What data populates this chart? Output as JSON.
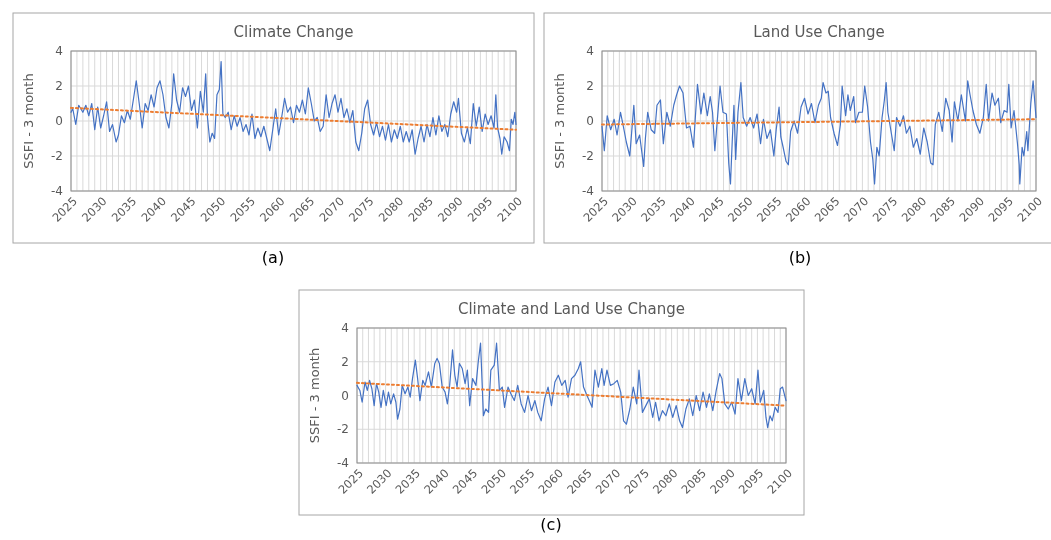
{
  "chart_data": [
    {
      "type": "line",
      "title": "Climate Change",
      "ylabel": "SSFI - 3 month",
      "xlim": [
        2025,
        2100
      ],
      "ylim": [
        -4,
        4
      ],
      "yticks": [
        -4,
        -2,
        0,
        2,
        4
      ],
      "grid": true,
      "annotations": [
        "(a)"
      ],
      "xticks": [
        2025,
        {
          "value": 2026,
          "label": null
        },
        {
          "value": 2027,
          "label": null
        },
        {
          "value": 2028,
          "label": null
        },
        {
          "value": 2029,
          "label": null
        },
        2030,
        {
          "value": 2031,
          "label": null
        },
        {
          "value": 2032,
          "label": null
        },
        {
          "value": 2033,
          "label": null
        },
        {
          "value": 2034,
          "label": null
        },
        2035,
        {
          "value": 2036,
          "label": null
        },
        {
          "value": 2037,
          "label": null
        },
        {
          "value": 2038,
          "label": null
        },
        {
          "value": 2039,
          "label": null
        },
        2040,
        {
          "value": 2041,
          "label": null
        },
        {
          "value": 2042,
          "label": null
        },
        {
          "value": 2043,
          "label": null
        },
        {
          "value": 2044,
          "label": null
        },
        2045,
        {
          "value": 2046,
          "label": null
        },
        {
          "value": 2047,
          "label": null
        },
        {
          "value": 2048,
          "label": null
        },
        {
          "value": 2049,
          "label": null
        },
        2050,
        {
          "value": 2051,
          "label": null
        },
        {
          "value": 2052,
          "label": null
        },
        {
          "value": 2053,
          "label": null
        },
        {
          "value": 2054,
          "label": null
        },
        2055,
        {
          "value": 2056,
          "label": null
        },
        {
          "value": 2057,
          "label": null
        },
        {
          "value": 2058,
          "label": null
        },
        {
          "value": 2059,
          "label": null
        },
        2060,
        {
          "value": 2061,
          "label": null
        },
        {
          "value": 2062,
          "label": null
        },
        {
          "value": 2063,
          "label": null
        },
        {
          "value": 2064,
          "label": null
        },
        2065,
        {
          "value": 2066,
          "label": null
        },
        {
          "value": 2067,
          "label": null
        },
        {
          "value": 2068,
          "label": null
        },
        {
          "value": 2069,
          "label": null
        },
        2070,
        {
          "value": 2071,
          "label": null
        },
        {
          "value": 2072,
          "label": null
        },
        {
          "value": 2073,
          "label": null
        },
        {
          "value": 2074,
          "label": null
        },
        2075,
        {
          "value": 2076,
          "label": null
        },
        {
          "value": 2077,
          "label": null
        },
        {
          "value": 2078,
          "label": null
        },
        {
          "value": 2079,
          "label": null
        },
        2080,
        {
          "value": 2081,
          "label": null
        },
        {
          "value": 2082,
          "label": null
        },
        {
          "value": 2083,
          "label": null
        },
        {
          "value": 2084,
          "label": null
        },
        2085,
        {
          "value": 2086,
          "label": null
        },
        {
          "value": 2087,
          "label": null
        },
        {
          "value": 2088,
          "label": null
        },
        {
          "value": 2089,
          "label": null
        },
        2090,
        {
          "value": 2091,
          "label": null
        },
        {
          "value": 2092,
          "label": null
        },
        {
          "value": 2093,
          "label": null
        },
        {
          "value": 2094,
          "label": null
        },
        2095,
        {
          "value": 2096,
          "label": null
        },
        {
          "value": 2097,
          "label": null
        },
        {
          "value": 2098,
          "label": null
        },
        {
          "value": 2099,
          "label": null
        },
        2100
      ],
      "series": [
        {
          "color": "#4472c4",
          "x": [
            2025,
            2025.3,
            2025.8,
            2026.3,
            2027,
            2027.5,
            2028,
            2028.5,
            2029,
            2029.5,
            2030,
            2030.5,
            2031,
            2031.5,
            2032,
            2032.6,
            2033,
            2033.5,
            2034,
            2034.5,
            2035,
            2035.5,
            2036,
            2036.5,
            2037,
            2037.5,
            2038,
            2038.5,
            2039,
            2039.5,
            2040,
            2040.5,
            2041,
            2041.5,
            2042,
            2042.3,
            2042.8,
            2043.3,
            2043.8,
            2044.3,
            2044.8,
            2045.3,
            2045.8,
            2046.3,
            2046.8,
            2047.3,
            2047.7,
            2048,
            2048.4,
            2048.8,
            2049.2,
            2049.6,
            2050,
            2050.3,
            2050.6,
            2051,
            2051.5,
            2052,
            2052.5,
            2053,
            2053.5,
            2054,
            2054.5,
            2055,
            2055.5,
            2056,
            2056.5,
            2057,
            2057.5,
            2058,
            2058.5,
            2059,
            2059.5,
            2060,
            2060.5,
            2061,
            2061.5,
            2062,
            2062.5,
            2063,
            2063.5,
            2064,
            2064.5,
            2065,
            2065.5,
            2066,
            2066.5,
            2067,
            2067.5,
            2068,
            2068.5,
            2069,
            2069.5,
            2070,
            2070.5,
            2071,
            2071.5,
            2072,
            2072.5,
            2073,
            2073.5,
            2074,
            2074.5,
            2075,
            2075.5,
            2076,
            2076.5,
            2077,
            2077.5,
            2078,
            2078.5,
            2079,
            2079.5,
            2080,
            2080.5,
            2081,
            2081.5,
            2082,
            2082.5,
            2083,
            2083.5,
            2084,
            2084.5,
            2085,
            2085.5,
            2086,
            2086.5,
            2087,
            2087.5,
            2088,
            2088.5,
            2089,
            2089.5,
            2090,
            2090.3,
            2090.8,
            2091.3,
            2091.8,
            2092.3,
            2092.8,
            2093.3,
            2093.8,
            2094.3,
            2094.8,
            2095.3,
            2095.8,
            2096.3,
            2096.6,
            2096.9,
            2097.3,
            2097.6,
            2098,
            2098.5,
            2098.9,
            2099.2,
            2099.5,
            2099.8,
            2100
          ],
          "values": [
            0.5,
            0.7,
            -0.2,
            0.9,
            0.5,
            0.9,
            0.3,
            1.0,
            -0.5,
            0.8,
            -0.4,
            0.3,
            1.1,
            -0.6,
            -0.2,
            -1.2,
            -0.8,
            0.3,
            -0.1,
            0.6,
            0.1,
            1.2,
            2.3,
            1.0,
            -0.4,
            1.0,
            0.6,
            1.5,
            0.8,
            1.9,
            2.3,
            1.5,
            0.2,
            -0.4,
            1.0,
            2.7,
            1.2,
            0.5,
            1.9,
            1.4,
            2.0,
            0.6,
            1.2,
            -0.4,
            1.7,
            0.5,
            2.7,
            0.2,
            -1.2,
            -0.7,
            -1.0,
            1.5,
            1.8,
            3.4,
            0.4,
            0.2,
            0.5,
            -0.5,
            0.3,
            -0.3,
            0.2,
            -0.6,
            -0.2,
            -0.8,
            0.4,
            -1.0,
            -0.4,
            -0.9,
            -0.3,
            -1.0,
            -1.7,
            -0.5,
            0.7,
            -0.8,
            0.2,
            1.3,
            0.5,
            0.8,
            -0.1,
            0.9,
            0.5,
            1.2,
            0.4,
            1.9,
            1.0,
            0.0,
            0.2,
            -0.6,
            -0.3,
            1.5,
            0.2,
            1.0,
            1.5,
            0.5,
            1.3,
            0.2,
            0.7,
            -0.1,
            0.6,
            -1.2,
            -1.7,
            -0.7,
            0.7,
            1.2,
            -0.2,
            -0.8,
            -0.1,
            -0.9,
            -0.3,
            -1.1,
            -0.2,
            -1.2,
            -0.5,
            -1.0,
            -0.3,
            -1.2,
            -0.6,
            -1.2,
            -0.5,
            -1.9,
            -1.0,
            -0.3,
            -1.2,
            -0.2,
            -0.9,
            0.2,
            -0.8,
            0.3,
            -0.6,
            -0.2,
            -0.9,
            0.4,
            1.1,
            0.5,
            1.3,
            -0.7,
            -1.2,
            -0.4,
            -1.3,
            1.0,
            -0.3,
            0.8,
            -0.6,
            0.4,
            -0.2,
            0.3,
            -0.4,
            1.5,
            -0.4,
            -1.0,
            -1.9,
            -0.9,
            -1.2,
            -1.7,
            0.1,
            -0.2,
            0.5,
            -0.2
          ]
        },
        {
          "color": "#ed7d31",
          "line_style": "dotted",
          "x": [
            2025,
            2100
          ],
          "values": [
            0.75,
            -0.5
          ]
        }
      ]
    },
    {
      "type": "line",
      "title": "Land Use Change",
      "ylabel": "SSFI - 3 month",
      "xlim": [
        2025,
        2100
      ],
      "ylim": [
        -4,
        4
      ],
      "yticks": [
        -4,
        -2,
        0,
        2,
        4
      ],
      "grid": true,
      "annotations": [
        "(b)"
      ],
      "xticks": [
        2025,
        {
          "value": 2026,
          "label": null
        },
        {
          "value": 2027,
          "label": null
        },
        {
          "value": 2028,
          "label": null
        },
        {
          "value": 2029,
          "label": null
        },
        2030,
        {
          "value": 2031,
          "label": null
        },
        {
          "value": 2032,
          "label": null
        },
        {
          "value": 2033,
          "label": null
        },
        {
          "value": 2034,
          "label": null
        },
        2035,
        {
          "value": 2036,
          "label": null
        },
        {
          "value": 2037,
          "label": null
        },
        {
          "value": 2038,
          "label": null
        },
        {
          "value": 2039,
          "label": null
        },
        2040,
        {
          "value": 2041,
          "label": null
        },
        {
          "value": 2042,
          "label": null
        },
        {
          "value": 2043,
          "label": null
        },
        {
          "value": 2044,
          "label": null
        },
        2045,
        {
          "value": 2046,
          "label": null
        },
        {
          "value": 2047,
          "label": null
        },
        {
          "value": 2048,
          "label": null
        },
        {
          "value": 2049,
          "label": null
        },
        2050,
        {
          "value": 2051,
          "label": null
        },
        {
          "value": 2052,
          "label": null
        },
        {
          "value": 2053,
          "label": null
        },
        {
          "value": 2054,
          "label": null
        },
        2055,
        {
          "value": 2056,
          "label": null
        },
        {
          "value": 2057,
          "label": null
        },
        {
          "value": 2058,
          "label": null
        },
        {
          "value": 2059,
          "label": null
        },
        2060,
        {
          "value": 2061,
          "label": null
        },
        {
          "value": 2062,
          "label": null
        },
        {
          "value": 2063,
          "label": null
        },
        {
          "value": 2064,
          "label": null
        },
        2065,
        {
          "value": 2066,
          "label": null
        },
        {
          "value": 2067,
          "label": null
        },
        {
          "value": 2068,
          "label": null
        },
        {
          "value": 2069,
          "label": null
        },
        2070,
        {
          "value": 2071,
          "label": null
        },
        {
          "value": 2072,
          "label": null
        },
        {
          "value": 2073,
          "label": null
        },
        {
          "value": 2074,
          "label": null
        },
        2075,
        {
          "value": 2076,
          "label": null
        },
        {
          "value": 2077,
          "label": null
        },
        {
          "value": 2078,
          "label": null
        },
        {
          "value": 2079,
          "label": null
        },
        2080,
        {
          "value": 2081,
          "label": null
        },
        {
          "value": 2082,
          "label": null
        },
        {
          "value": 2083,
          "label": null
        },
        {
          "value": 2084,
          "label": null
        },
        2085,
        {
          "value": 2086,
          "label": null
        },
        {
          "value": 2087,
          "label": null
        },
        {
          "value": 2088,
          "label": null
        },
        {
          "value": 2089,
          "label": null
        },
        2090,
        {
          "value": 2091,
          "label": null
        },
        {
          "value": 2092,
          "label": null
        },
        {
          "value": 2093,
          "label": null
        },
        {
          "value": 2094,
          "label": null
        },
        2095,
        {
          "value": 2096,
          "label": null
        },
        {
          "value": 2097,
          "label": null
        },
        {
          "value": 2098,
          "label": null
        },
        {
          "value": 2099,
          "label": null
        },
        2100
      ],
      "series": [
        {
          "color": "#4472c4",
          "x": [
            2025,
            2025.4,
            2025.9,
            2026.5,
            2027.1,
            2027.6,
            2028.2,
            2028.8,
            2029.2,
            2029.8,
            2030.5,
            2030.9,
            2031.5,
            2032.2,
            2032.5,
            2032.9,
            2033.5,
            2034.1,
            2034.5,
            2035.1,
            2035.6,
            2036.2,
            2036.8,
            2037.4,
            2037.9,
            2038.4,
            2039,
            2039.6,
            2040.2,
            2040.8,
            2041.5,
            2042.1,
            2042.6,
            2043.2,
            2043.7,
            2044.1,
            2044.5,
            2045.4,
            2045.9,
            2046.5,
            2046.9,
            2047.2,
            2047.5,
            2047.8,
            2048.1,
            2048.5,
            2049,
            2049.4,
            2050,
            2050.6,
            2051.2,
            2051.8,
            2052.4,
            2052.9,
            2053.5,
            2054.1,
            2054.7,
            2055.1,
            2055.6,
            2055.9,
            2056.3,
            2056.8,
            2057.2,
            2057.6,
            2058.2,
            2058.8,
            2059.4,
            2060,
            2060.6,
            2061.2,
            2061.8,
            2062.4,
            2062.9,
            2063.2,
            2063.7,
            2064.1,
            2064.5,
            2065.1,
            2065.7,
            2066.2,
            2066.5,
            2067.1,
            2067.5,
            2067.9,
            2068.5,
            2068.8,
            2069.4,
            2070,
            2070.4,
            2070.9,
            2071.4,
            2071.8,
            2072.1,
            2072.5,
            2072.9,
            2073.4,
            2073.8,
            2074.1,
            2074.4,
            2074.9,
            2075.5,
            2075.9,
            2076.5,
            2077.1,
            2077.6,
            2078.2,
            2078.8,
            2079.4,
            2080,
            2080.6,
            2081.2,
            2081.8,
            2082.2,
            2082.6,
            2083.2,
            2083.8,
            2084.4,
            2085,
            2085.5,
            2085.9,
            2086.5,
            2087.1,
            2087.8,
            2088.2,
            2088.6,
            2089.1,
            2089.7,
            2090.3,
            2090.9,
            2091.4,
            2091.8,
            2092.4,
            2092.9,
            2093.5,
            2093.9,
            2094.5,
            2095,
            2095.3,
            2095.7,
            2096.2,
            2096.8,
            2097.1,
            2097.2,
            2097.6,
            2097.9,
            2098.4,
            2098.6,
            2099.1,
            2099.5,
            2100
          ],
          "values": [
            -0.3,
            -1.7,
            0.3,
            -0.5,
            0.1,
            -0.8,
            0.5,
            -0.5,
            -1.2,
            -2.0,
            0.9,
            -1.3,
            -0.8,
            -2.6,
            -1.0,
            0.5,
            -0.5,
            -0.7,
            0.9,
            1.2,
            -1.3,
            0.5,
            -0.3,
            0.9,
            1.5,
            2.0,
            1.6,
            -0.4,
            -0.3,
            -1.5,
            2.1,
            0.4,
            1.6,
            0.3,
            1.4,
            0.5,
            -1.7,
            2.0,
            0.5,
            0.4,
            -2.4,
            -3.6,
            -1.2,
            0.9,
            -2.2,
            0.5,
            2.2,
            0.2,
            -0.3,
            0.2,
            -0.4,
            0.4,
            -1.3,
            0.1,
            -1.0,
            -0.5,
            -2.0,
            -0.5,
            0.8,
            -0.9,
            -1.5,
            -2.3,
            -2.5,
            -0.6,
            0.0,
            -0.7,
            0.8,
            1.3,
            0.4,
            1.0,
            -0.1,
            0.9,
            1.3,
            2.2,
            1.6,
            1.7,
            0.2,
            -0.7,
            -1.4,
            -0.2,
            2.0,
            0.3,
            1.5,
            0.6,
            1.4,
            -0.1,
            0.5,
            0.5,
            2.0,
            0.8,
            -1.2,
            -2.2,
            -3.6,
            -1.5,
            -2.0,
            0.2,
            1.2,
            2.2,
            0.5,
            -0.5,
            -1.7,
            0.2,
            -0.3,
            0.3,
            -0.7,
            -0.3,
            -1.5,
            -1.0,
            -1.9,
            -0.4,
            -1.2,
            -2.4,
            -2.5,
            -0.2,
            0.5,
            -0.6,
            1.3,
            0.6,
            -1.2,
            1.1,
            0.0,
            1.5,
            0.0,
            2.3,
            1.5,
            0.6,
            -0.2,
            -0.7,
            0.2,
            2.1,
            0.0,
            1.6,
            0.9,
            1.3,
            -0.1,
            0.6,
            0.5,
            2.1,
            -0.4,
            0.6,
            -1.3,
            -2.5,
            -3.6,
            -1.5,
            -2.0,
            -0.6,
            -1.7,
            1.0,
            2.3,
            0.2
          ]
        },
        {
          "color": "#ed7d31",
          "line_style": "dotted",
          "x": [
            2025,
            2100
          ],
          "values": [
            -0.2,
            0.1
          ]
        }
      ]
    },
    {
      "type": "line",
      "title": "Climate and Land Use Change",
      "ylabel": "SSFI - 3 month",
      "xlim": [
        2025,
        2100
      ],
      "ylim": [
        -4,
        4
      ],
      "yticks": [
        -4,
        -2,
        0,
        2,
        4
      ],
      "grid": true,
      "annotations": [
        "(c)"
      ],
      "xticks": [
        2025,
        {
          "value": 2026,
          "label": null
        },
        {
          "value": 2027,
          "label": null
        },
        {
          "value": 2028,
          "label": null
        },
        {
          "value": 2029,
          "label": null
        },
        2030,
        {
          "value": 2031,
          "label": null
        },
        {
          "value": 2032,
          "label": null
        },
        {
          "value": 2033,
          "label": null
        },
        {
          "value": 2034,
          "label": null
        },
        2035,
        {
          "value": 2036,
          "label": null
        },
        {
          "value": 2037,
          "label": null
        },
        {
          "value": 2038,
          "label": null
        },
        {
          "value": 2039,
          "label": null
        },
        2040,
        {
          "value": 2041,
          "label": null
        },
        {
          "value": 2042,
          "label": null
        },
        {
          "value": 2043,
          "label": null
        },
        {
          "value": 2044,
          "label": null
        },
        2045,
        {
          "value": 2046,
          "label": null
        },
        {
          "value": 2047,
          "label": null
        },
        {
          "value": 2048,
          "label": null
        },
        {
          "value": 2049,
          "label": null
        },
        2050,
        {
          "value": 2051,
          "label": null
        },
        {
          "value": 2052,
          "label": null
        },
        {
          "value": 2053,
          "label": null
        },
        {
          "value": 2054,
          "label": null
        },
        2055,
        {
          "value": 2056,
          "label": null
        },
        {
          "value": 2057,
          "label": null
        },
        {
          "value": 2058,
          "label": null
        },
        {
          "value": 2059,
          "label": null
        },
        2060,
        {
          "value": 2061,
          "label": null
        },
        {
          "value": 2062,
          "label": null
        },
        {
          "value": 2063,
          "label": null
        },
        {
          "value": 2064,
          "label": null
        },
        2065,
        {
          "value": 2066,
          "label": null
        },
        {
          "value": 2067,
          "label": null
        },
        {
          "value": 2068,
          "label": null
        },
        {
          "value": 2069,
          "label": null
        },
        2070,
        {
          "value": 2071,
          "label": null
        },
        {
          "value": 2072,
          "label": null
        },
        {
          "value": 2073,
          "label": null
        },
        {
          "value": 2074,
          "label": null
        },
        2075,
        {
          "value": 2076,
          "label": null
        },
        {
          "value": 2077,
          "label": null
        },
        {
          "value": 2078,
          "label": null
        },
        {
          "value": 2079,
          "label": null
        },
        2080,
        {
          "value": 2081,
          "label": null
        },
        {
          "value": 2082,
          "label": null
        },
        {
          "value": 2083,
          "label": null
        },
        {
          "value": 2084,
          "label": null
        },
        2085,
        {
          "value": 2086,
          "label": null
        },
        {
          "value": 2087,
          "label": null
        },
        {
          "value": 2088,
          "label": null
        },
        {
          "value": 2089,
          "label": null
        },
        2090,
        {
          "value": 2091,
          "label": null
        },
        {
          "value": 2092,
          "label": null
        },
        {
          "value": 2093,
          "label": null
        },
        {
          "value": 2094,
          "label": null
        },
        2095,
        {
          "value": 2096,
          "label": null
        },
        {
          "value": 2097,
          "label": null
        },
        {
          "value": 2098,
          "label": null
        },
        {
          "value": 2099,
          "label": null
        },
        2100
      ],
      "series": [
        {
          "color": "#4472c4",
          "x": [
            2025,
            2025.5,
            2025.9,
            2026.4,
            2026.8,
            2027.2,
            2027.6,
            2028,
            2028.4,
            2028.8,
            2029.2,
            2029.6,
            2030.1,
            2030.5,
            2030.9,
            2031.4,
            2031.8,
            2032.1,
            2032.5,
            2032.9,
            2033.4,
            2033.9,
            2034.3,
            2034.7,
            2035.2,
            2035.6,
            2036,
            2036.5,
            2036.9,
            2037.5,
            2038,
            2038.6,
            2039,
            2039.4,
            2039.9,
            2040.4,
            2040.8,
            2041.2,
            2041.7,
            2042.1,
            2042.5,
            2042.9,
            2043.4,
            2043.9,
            2044.3,
            2044.7,
            2045.2,
            2045.8,
            2046.2,
            2046.6,
            2047.1,
            2047.5,
            2048,
            2048.4,
            2049,
            2049.4,
            2049.9,
            2050.4,
            2050.8,
            2051.4,
            2051.9,
            2052.5,
            2053.1,
            2053.7,
            2054.3,
            2054.9,
            2055.5,
            2056.1,
            2056.6,
            2057.2,
            2057.8,
            2058.4,
            2059,
            2059.6,
            2060.2,
            2060.8,
            2061.4,
            2061.9,
            2062.5,
            2063.1,
            2063.7,
            2064.1,
            2064.6,
            2065.2,
            2065.6,
            2066.1,
            2066.6,
            2067.2,
            2067.8,
            2068.2,
            2068.7,
            2069.3,
            2069.9,
            2070.5,
            2071.1,
            2071.6,
            2072.1,
            2072.7,
            2073.3,
            2073.9,
            2074.3,
            2074.9,
            2075.5,
            2076.1,
            2076.7,
            2077.2,
            2077.8,
            2078.4,
            2079,
            2079.6,
            2080.2,
            2080.8,
            2081.4,
            2081.9,
            2082.5,
            2083.1,
            2083.7,
            2084.3,
            2084.9,
            2085.5,
            2086.1,
            2086.6,
            2087.2,
            2087.8,
            2088.4,
            2088.8,
            2089.3,
            2089.9,
            2090.5,
            2091.1,
            2091.6,
            2092.2,
            2092.8,
            2093.4,
            2094,
            2094.6,
            2095.1,
            2095.5,
            2096.1,
            2096.5,
            2096.8,
            2097.2,
            2097.6,
            2098.1,
            2098.6,
            2099,
            2099.4,
            2100
          ],
          "values": [
            0.6,
            0.3,
            -0.4,
            0.8,
            0.3,
            0.9,
            0.4,
            -0.6,
            0.7,
            0.2,
            -0.7,
            0.3,
            -0.6,
            0.2,
            -0.5,
            0.1,
            -0.4,
            -1.4,
            -0.8,
            0.6,
            0.1,
            0.5,
            -0.1,
            1.0,
            2.1,
            1.0,
            -0.3,
            0.9,
            0.6,
            1.4,
            0.5,
            1.9,
            2.2,
            1.9,
            0.5,
            0.2,
            -0.5,
            0.6,
            2.7,
            1.2,
            0.5,
            1.9,
            1.6,
            0.7,
            1.5,
            -0.6,
            1.0,
            0.6,
            2.0,
            3.1,
            -1.2,
            -0.8,
            -1.0,
            1.5,
            1.8,
            3.1,
            0.3,
            0.5,
            -0.7,
            0.5,
            0.1,
            -0.3,
            0.6,
            -0.5,
            -1.0,
            0.0,
            -0.9,
            -0.3,
            -1.0,
            -1.5,
            -0.2,
            0.5,
            -0.6,
            0.8,
            1.2,
            0.6,
            0.9,
            -0.1,
            1.0,
            1.2,
            1.6,
            2.0,
            0.5,
            0.0,
            -0.3,
            -0.7,
            1.5,
            0.5,
            1.6,
            0.6,
            1.5,
            0.6,
            0.7,
            0.9,
            0.2,
            -1.5,
            -1.7,
            -0.8,
            0.5,
            -0.5,
            1.5,
            -1.0,
            -0.6,
            -0.2,
            -1.3,
            -0.4,
            -1.5,
            -0.9,
            -1.2,
            -0.5,
            -1.3,
            -0.6,
            -1.5,
            -1.9,
            -0.8,
            -0.2,
            -1.2,
            0.0,
            -0.9,
            0.2,
            -0.7,
            0.1,
            -0.9,
            0.3,
            1.3,
            1.0,
            -0.5,
            -0.8,
            -0.4,
            -1.1,
            1.0,
            -0.3,
            1.0,
            0.0,
            0.4,
            -0.5,
            1.5,
            -0.4,
            0.3,
            -1.3,
            -1.9,
            -1.2,
            -1.5,
            -0.7,
            -1.0,
            0.4,
            0.5,
            -0.3
          ]
        },
        {
          "color": "#ed7d31",
          "line_style": "dotted",
          "x": [
            2025,
            2100
          ],
          "values": [
            0.75,
            -0.6
          ]
        }
      ]
    }
  ]
}
